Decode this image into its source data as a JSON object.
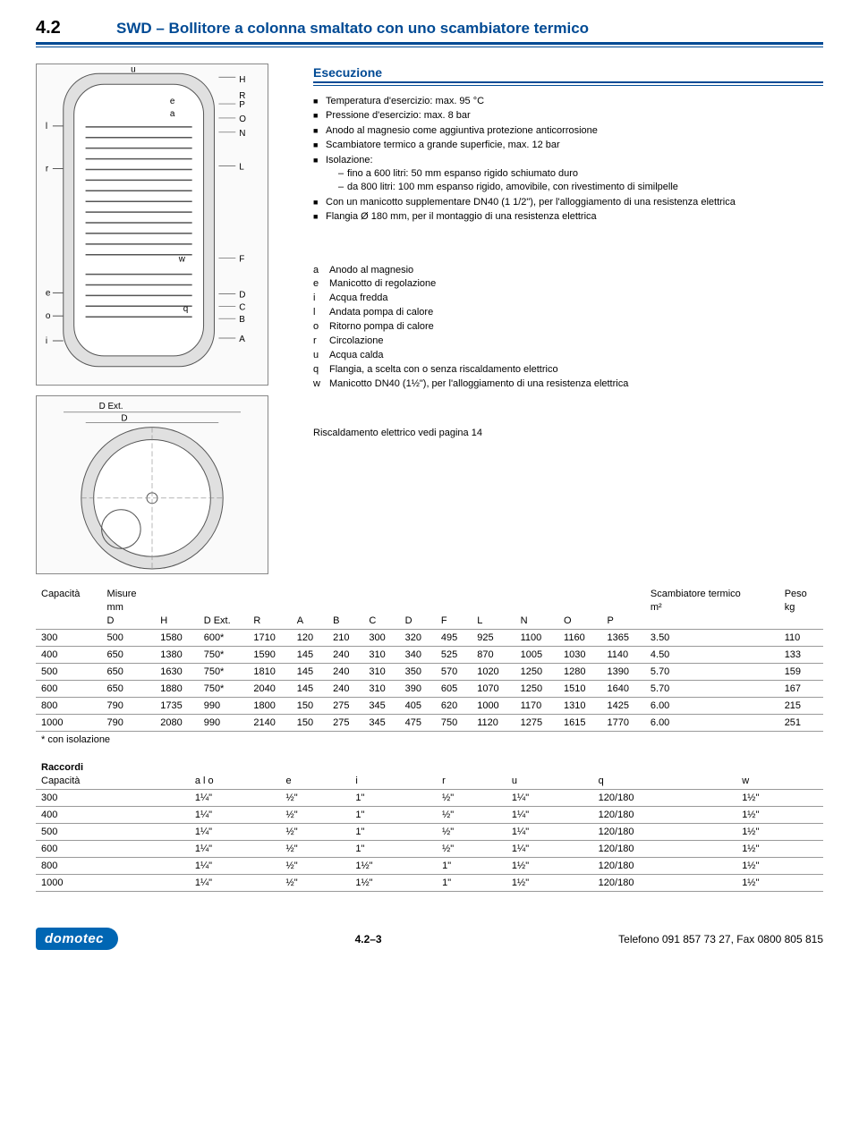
{
  "header": {
    "section": "4.2",
    "title": "SWD – Bollitore a colonna smaltato con uno scambiatore termico"
  },
  "esecuzione": {
    "title": "Esecuzione",
    "items": [
      {
        "text": "Temperatura d'esercizio: max. 95 °C"
      },
      {
        "text": "Pressione d'esercizio: max. 8 bar"
      },
      {
        "text": "Anodo al magnesio come aggiuntiva protezione anticorrosione"
      },
      {
        "text": "Scambiatore termico a grande superficie, max. 12 bar"
      },
      {
        "text": "Isolazione:",
        "sub": [
          "fino a 600 litri: 50 mm espanso rigido schiumato duro",
          "da 800 litri: 100 mm espanso rigido, amovibile, con rivestimento di similpelle"
        ]
      },
      {
        "text": "Con un manicotto supplementare DN40 (1 1/2\"), per l'alloggiamento di una resistenza elettrica"
      },
      {
        "text": "Flangia Ø 180 mm, per il montaggio di una resistenza elettrica"
      }
    ]
  },
  "legend": [
    {
      "k": "a",
      "v": "Anodo al magnesio"
    },
    {
      "k": "e",
      "v": "Manicotto di regolazione"
    },
    {
      "k": "i",
      "v": "Acqua fredda"
    },
    {
      "k": "l",
      "v": "Andata pompa di calore"
    },
    {
      "k": "o",
      "v": "Ritorno pompa di calore"
    },
    {
      "k": "r",
      "v": "Circolazione"
    },
    {
      "k": "u",
      "v": "Acqua calda"
    },
    {
      "k": "q",
      "v": "Flangia, a scelta con o senza riscaldamento elettrico"
    },
    {
      "k": "w",
      "v": "Manicotto DN40 (1½\"), per l'alloggiamento di una resistenza elettrica"
    }
  ],
  "note": "Riscaldamento elettrico vedi pagina 14",
  "table1": {
    "head1": [
      "Capacità",
      "Misure",
      "",
      "",
      "",
      "",
      "",
      "",
      "",
      "",
      "",
      "",
      "",
      "",
      "Scambiatore termico",
      "Peso"
    ],
    "head2": [
      "",
      "mm",
      "",
      "",
      "",
      "",
      "",
      "",
      "",
      "",
      "",
      "",
      "",
      "",
      "m²",
      "kg"
    ],
    "head3": [
      "",
      "D",
      "H",
      "D Ext.",
      "R",
      "A",
      "B",
      "C",
      "D",
      "F",
      "L",
      "N",
      "O",
      "P",
      "",
      ""
    ],
    "rows": [
      [
        "300",
        "500",
        "1580",
        "600*",
        "1710",
        "120",
        "210",
        "300",
        "320",
        "495",
        "925",
        "1100",
        "1160",
        "1365",
        "3.50",
        "110"
      ],
      [
        "400",
        "650",
        "1380",
        "750*",
        "1590",
        "145",
        "240",
        "310",
        "340",
        "525",
        "870",
        "1005",
        "1030",
        "1140",
        "4.50",
        "133"
      ],
      [
        "500",
        "650",
        "1630",
        "750*",
        "1810",
        "145",
        "240",
        "310",
        "350",
        "570",
        "1020",
        "1250",
        "1280",
        "1390",
        "5.70",
        "159"
      ],
      [
        "600",
        "650",
        "1880",
        "750*",
        "2040",
        "145",
        "240",
        "310",
        "390",
        "605",
        "1070",
        "1250",
        "1510",
        "1640",
        "5.70",
        "167"
      ],
      [
        "800",
        "790",
        "1735",
        "990",
        "1800",
        "150",
        "275",
        "345",
        "405",
        "620",
        "1000",
        "1170",
        "1310",
        "1425",
        "6.00",
        "215"
      ],
      [
        "1000",
        "790",
        "2080",
        "990",
        "2140",
        "150",
        "275",
        "345",
        "475",
        "750",
        "1120",
        "1275",
        "1615",
        "1770",
        "6.00",
        "251"
      ]
    ],
    "footnote": "* con isolazione"
  },
  "table2": {
    "title": "Raccordi",
    "head": [
      "Capacità",
      "a l o",
      "e",
      "i",
      "r",
      "u",
      "q",
      "w"
    ],
    "rows": [
      [
        "300",
        "1¼\"",
        "½\"",
        "1\"",
        "½\"",
        "1¼\"",
        "120/180",
        "1½\""
      ],
      [
        "400",
        "1¼\"",
        "½\"",
        "1\"",
        "½\"",
        "1¼\"",
        "120/180",
        "1½\""
      ],
      [
        "500",
        "1¼\"",
        "½\"",
        "1\"",
        "½\"",
        "1¼\"",
        "120/180",
        "1½\""
      ],
      [
        "600",
        "1¼\"",
        "½\"",
        "1\"",
        "½\"",
        "1¼\"",
        "120/180",
        "1½\""
      ],
      [
        "800",
        "1¼\"",
        "½\"",
        "1½\"",
        "1\"",
        "1½\"",
        "120/180",
        "1½\""
      ],
      [
        "1000",
        "1¼\"",
        "½\"",
        "1½\"",
        "1\"",
        "1½\"",
        "120/180",
        "1½\""
      ]
    ]
  },
  "footer": {
    "logo": "domotec",
    "page": "4.2–3",
    "contact": "Telefono 091 857 73 27, Fax 0800 805 815"
  },
  "diagram": {
    "labels_left": [
      "l",
      "r",
      "e",
      "o",
      "i"
    ],
    "labels_right_top": [
      "H",
      "P",
      "O",
      "N",
      "L"
    ],
    "labels_right_mid": [
      "F"
    ],
    "labels_right_bot": [
      "D",
      "C",
      "B",
      "A"
    ],
    "top_labels": [
      "u",
      "e",
      "a",
      "w",
      "q"
    ],
    "bottom_labels": [
      "D Ext.",
      "D"
    ]
  }
}
